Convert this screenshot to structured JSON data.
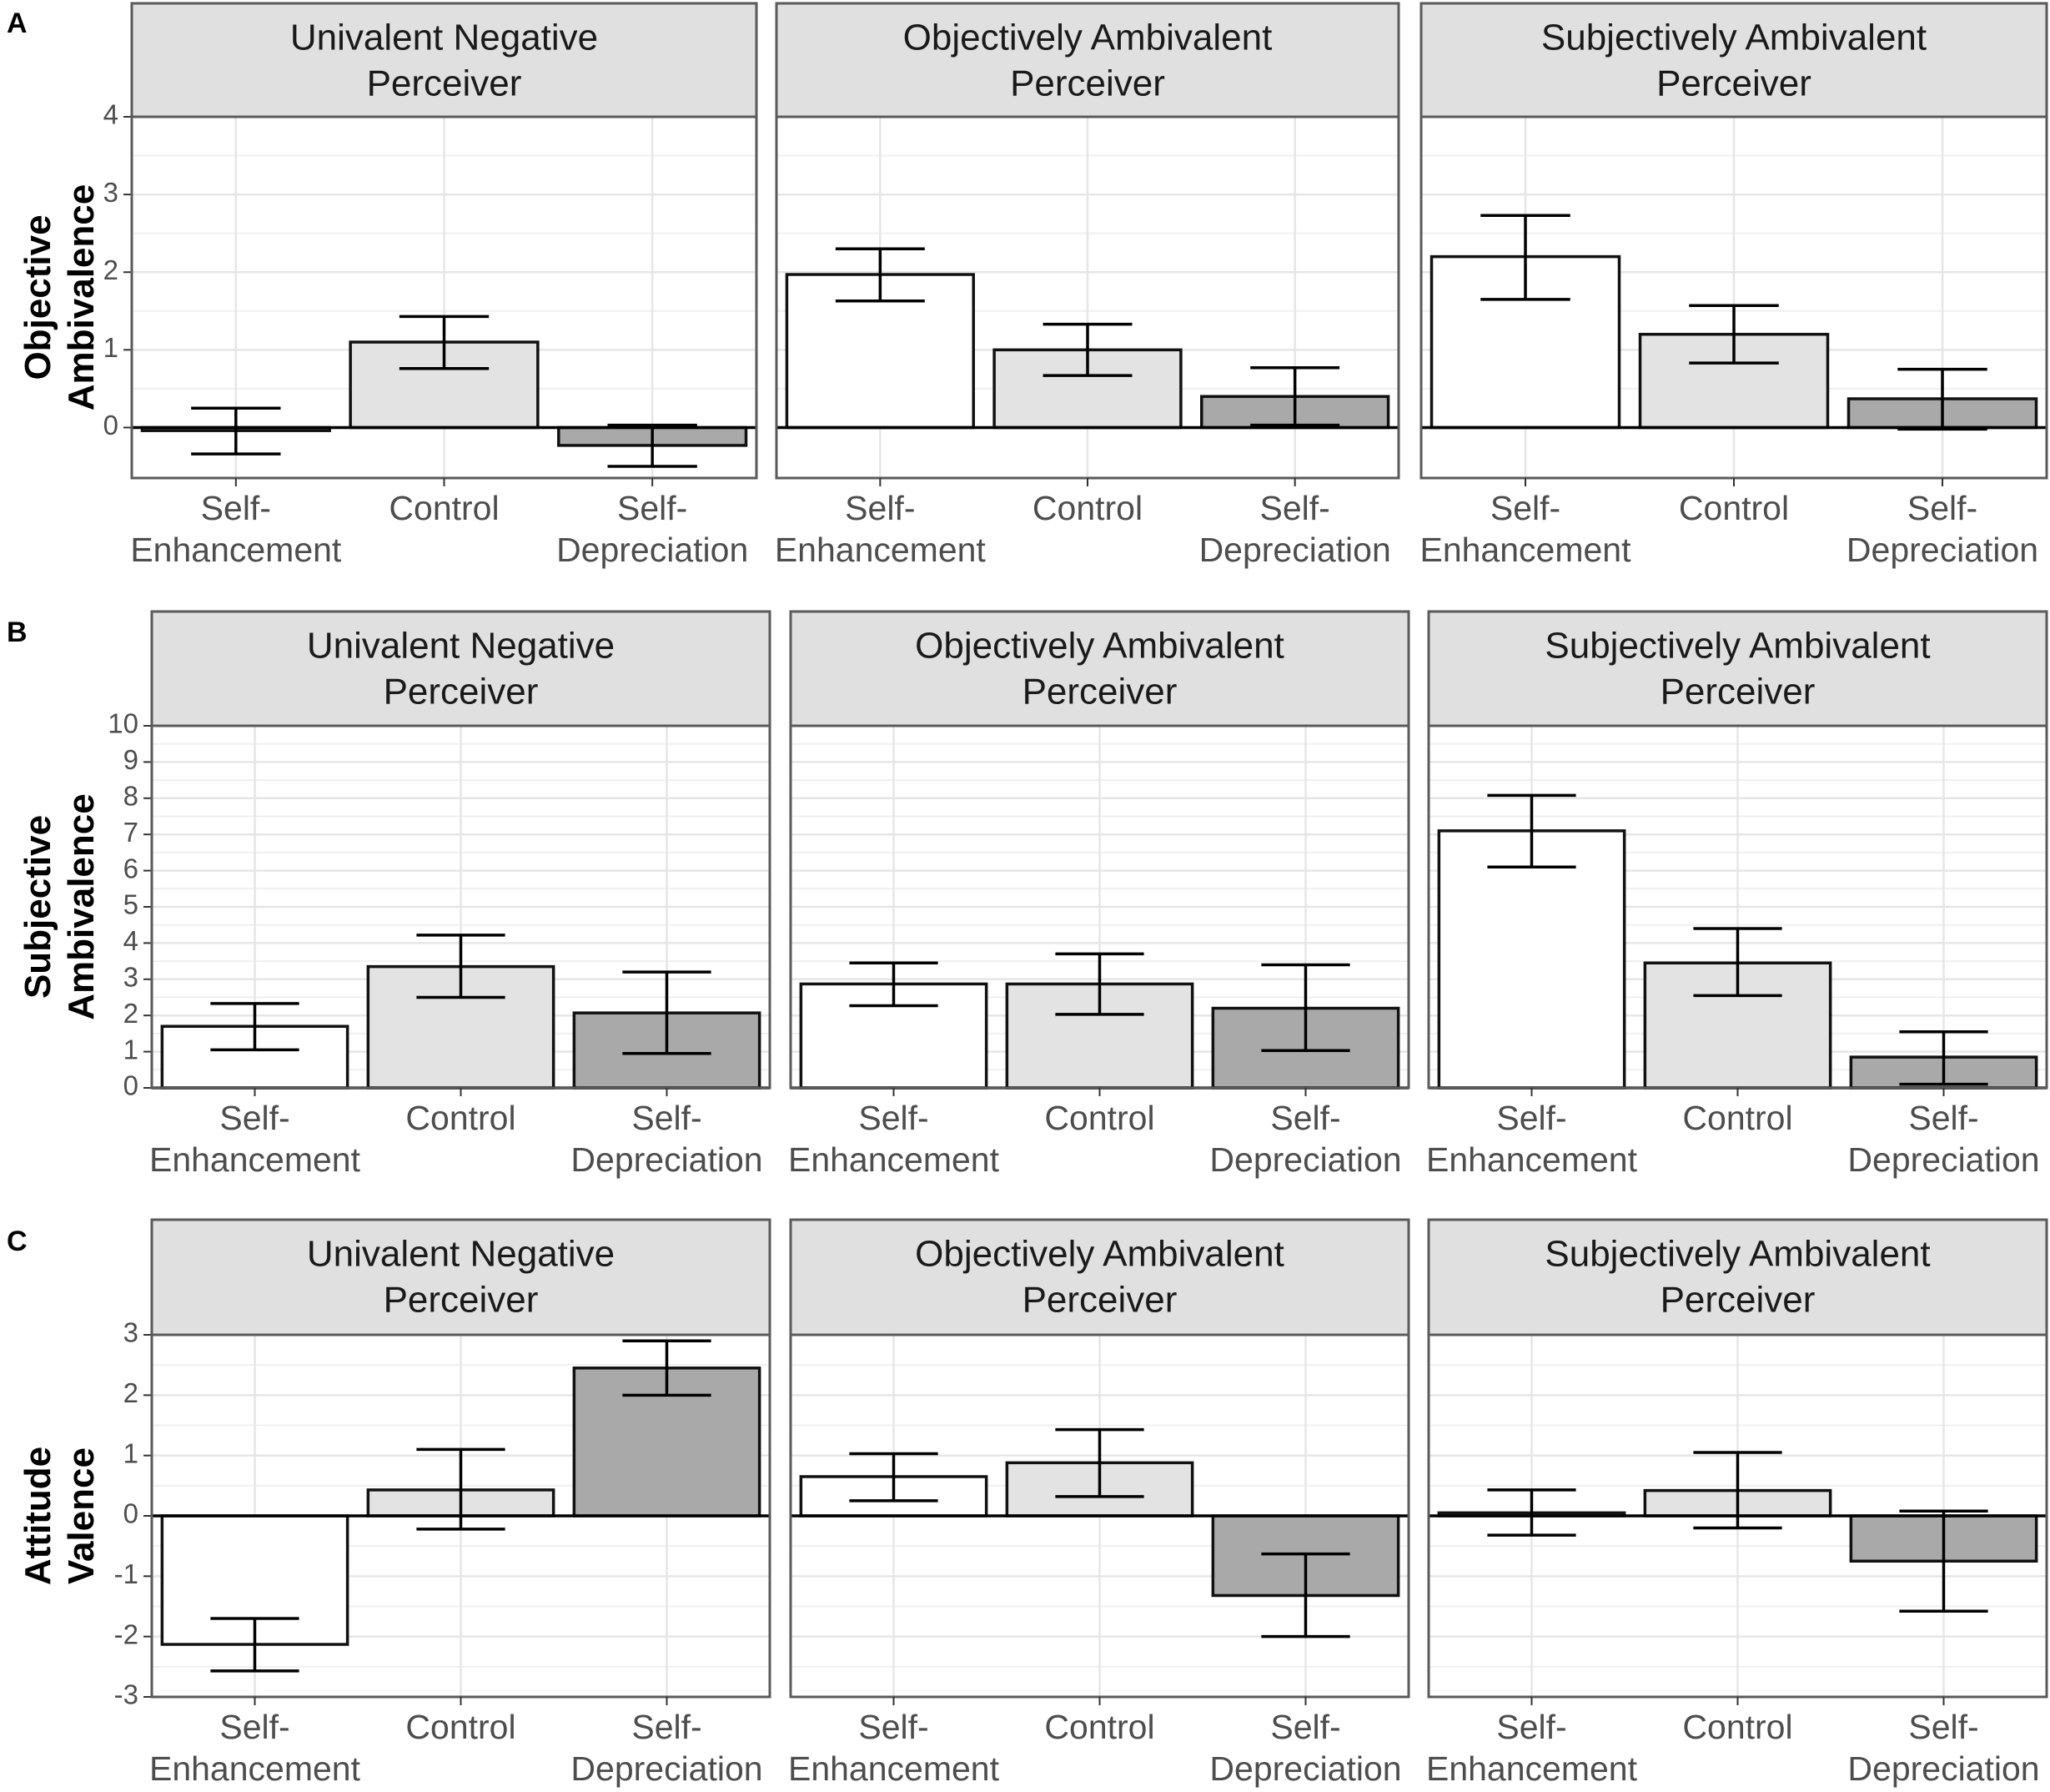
{
  "chart_data": [
    {
      "type": "bar",
      "panel_label": "A",
      "ylabel_lines": [
        "Objective",
        "Ambivalence"
      ],
      "ylim": [
        -0.65,
        4
      ],
      "yticks": [
        0,
        1,
        2,
        3,
        4
      ],
      "categories": [
        {
          "line1": "Self-",
          "line2": "Enhancement"
        },
        {
          "line1": "Control",
          "line2": ""
        },
        {
          "line1": "Self-",
          "line2": "Depreciation"
        }
      ],
      "bar_colors": [
        "#ffffff",
        "#e3e3e3",
        "#a9a9a9"
      ],
      "facets": [
        {
          "title_line1": "Univalent Negative",
          "title_line2": "Perceiver",
          "values": [
            -0.04,
            1.1,
            -0.23
          ],
          "err_low": [
            -0.34,
            0.76,
            -0.5
          ],
          "err_high": [
            0.25,
            1.43,
            0.03
          ]
        },
        {
          "title_line1": "Objectively Ambivalent",
          "title_line2": "Perceiver",
          "values": [
            1.97,
            1.0,
            0.4
          ],
          "err_low": [
            1.63,
            0.67,
            0.03
          ],
          "err_high": [
            2.3,
            1.33,
            0.77
          ]
        },
        {
          "title_line1": "Subjectively Ambivalent",
          "title_line2": "Perceiver",
          "values": [
            2.2,
            1.2,
            0.37
          ],
          "err_low": [
            1.65,
            0.83,
            -0.02
          ],
          "err_high": [
            2.73,
            1.57,
            0.75
          ]
        }
      ]
    },
    {
      "type": "bar",
      "panel_label": "B",
      "ylabel_lines": [
        "Subjective",
        "Ambivalence"
      ],
      "ylim": [
        0,
        10
      ],
      "yticks": [
        0,
        1,
        2,
        3,
        4,
        5,
        6,
        7,
        8,
        9,
        10
      ],
      "categories": [
        {
          "line1": "Self-",
          "line2": "Enhancement"
        },
        {
          "line1": "Control",
          "line2": ""
        },
        {
          "line1": "Self-",
          "line2": "Depreciation"
        }
      ],
      "bar_colors": [
        "#ffffff",
        "#e3e3e3",
        "#a9a9a9"
      ],
      "facets": [
        {
          "title_line1": "Univalent Negative",
          "title_line2": "Perceiver",
          "values": [
            1.7,
            3.35,
            2.07
          ],
          "err_low": [
            1.05,
            2.5,
            0.95
          ],
          "err_high": [
            2.33,
            4.22,
            3.2
          ]
        },
        {
          "title_line1": "Objectively Ambivalent",
          "title_line2": "Perceiver",
          "values": [
            2.87,
            2.87,
            2.2
          ],
          "err_low": [
            2.27,
            2.03,
            1.03
          ],
          "err_high": [
            3.45,
            3.7,
            3.4
          ]
        },
        {
          "title_line1": "Subjectively Ambivalent",
          "title_line2": "Perceiver",
          "values": [
            7.1,
            3.45,
            0.85
          ],
          "err_low": [
            6.1,
            2.55,
            0.1
          ],
          "err_high": [
            8.08,
            4.4,
            1.55
          ]
        }
      ]
    },
    {
      "type": "bar",
      "panel_label": "C",
      "ylabel_lines": [
        "Attitude",
        "Valence"
      ],
      "ylim": [
        -3,
        3
      ],
      "yticks": [
        -3,
        -2,
        -1,
        0,
        1,
        2,
        3
      ],
      "categories": [
        {
          "line1": "Self-",
          "line2": "Enhancement"
        },
        {
          "line1": "Control",
          "line2": ""
        },
        {
          "line1": "Self-",
          "line2": "Depreciation"
        }
      ],
      "bar_colors": [
        "#ffffff",
        "#e3e3e3",
        "#a9a9a9"
      ],
      "facets": [
        {
          "title_line1": "Univalent Negative",
          "title_line2": "Perceiver",
          "values": [
            -2.13,
            0.43,
            2.45
          ],
          "err_low": [
            -2.57,
            -0.22,
            2.0
          ],
          "err_high": [
            -1.7,
            1.1,
            2.9
          ]
        },
        {
          "title_line1": "Objectively Ambivalent",
          "title_line2": "Perceiver",
          "values": [
            0.65,
            0.88,
            -1.32
          ],
          "err_low": [
            0.25,
            0.32,
            -2.0
          ],
          "err_high": [
            1.03,
            1.43,
            -0.63
          ]
        },
        {
          "title_line1": "Subjectively Ambivalent",
          "title_line2": "Perceiver",
          "values": [
            0.05,
            0.42,
            -0.75
          ],
          "err_low": [
            -0.32,
            -0.2,
            -1.58
          ],
          "err_high": [
            0.43,
            1.05,
            0.08
          ]
        }
      ]
    }
  ]
}
